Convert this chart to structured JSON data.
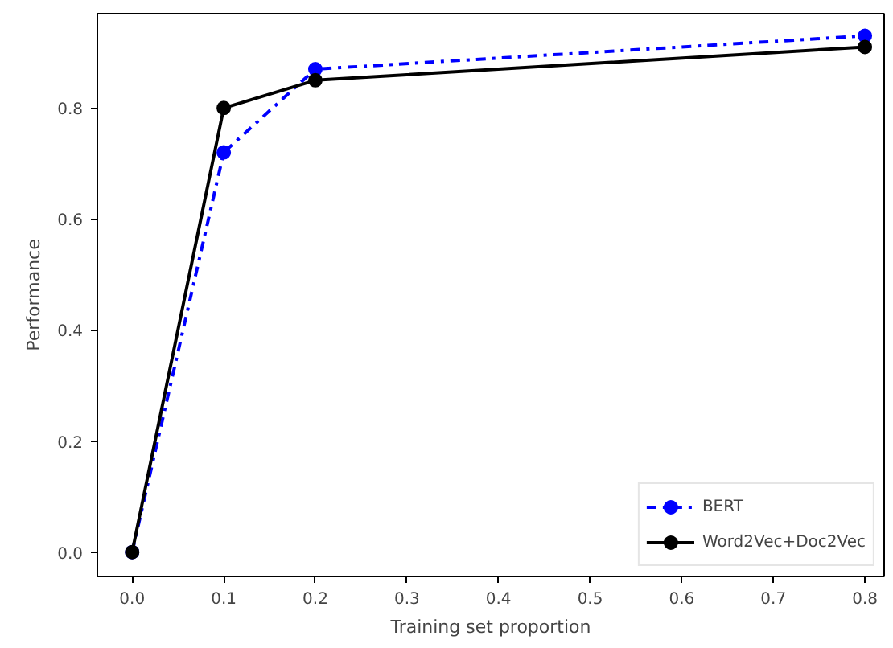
{
  "chart_data": {
    "type": "line",
    "xlabel": "Training set proportion",
    "ylabel": "Performance",
    "x": [
      0.0,
      0.1,
      0.2,
      0.8
    ],
    "series": [
      {
        "name": "BERT",
        "color": "#0000ff",
        "values": [
          0.0,
          0.72,
          0.87,
          0.93
        ],
        "line_style": "dashdot"
      },
      {
        "name": "Word2Vec+Doc2Vec",
        "color": "#000000",
        "values": [
          0.0,
          0.8,
          0.85,
          0.91
        ],
        "line_style": "solid"
      }
    ],
    "marker": "circle",
    "legend": "bottom right",
    "grid": false,
    "xlim": [
      -0.038,
      0.821
    ],
    "ylim": [
      -0.044,
      0.97
    ],
    "xticks": [
      {
        "value": 0,
        "label": "0.0"
      },
      0.1,
      0.2,
      0.3,
      0.4,
      0.5,
      0.6,
      0.7,
      0.8
    ],
    "yticks": [
      {
        "value": 0,
        "label": "0.0"
      },
      0.2,
      0.4,
      0.6,
      0.8
    ]
  }
}
